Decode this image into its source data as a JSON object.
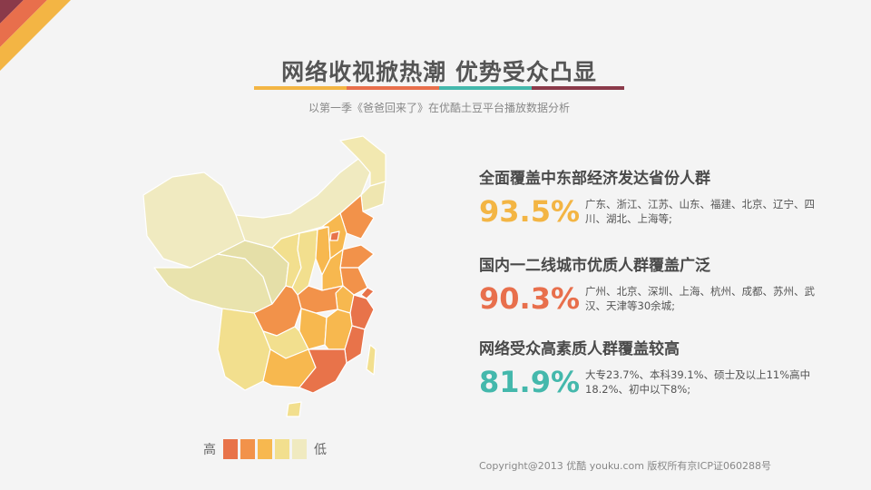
{
  "header": {
    "title": "网络收视掀热潮 优势受众凸显",
    "subtitle": "以第一季《爸爸回来了》在优酷土豆平台播放数据分析",
    "bar_colors": [
      "#f3b544",
      "#e86f4c",
      "#44b8ac",
      "#8b3a4a"
    ]
  },
  "corner_colors": [
    "#e86f4c",
    "#f3b544",
    "#8b3a4a"
  ],
  "map": {
    "icon": "china-map-icon",
    "levels": [
      "#e8734a",
      "#f2924a",
      "#f7b84f",
      "#f2df8e",
      "#f0eac0"
    ]
  },
  "legend": {
    "high": "高",
    "low": "低"
  },
  "stats": [
    {
      "heading": "全面覆盖中东部经济发达省份人群",
      "percent": "93.5%",
      "color": "#f3b544",
      "desc": "广东、浙江、江苏、山东、福建、北京、辽宁、四川、湖北、上海等;"
    },
    {
      "heading": "国内一二线城市优质人群覆盖广泛",
      "percent": "90.3%",
      "color": "#e86f4c",
      "desc": "广州、北京、深圳、上海、杭州、成都、苏州、武汉、天津等30余城;"
    },
    {
      "heading": "网络受众高素质人群覆盖较高",
      "percent": "81.9%",
      "color": "#44b8ac",
      "desc": "大专23.7%、本科39.1%、硕士及以上11%高中18.2%、初中以下8%;"
    }
  ],
  "footer": {
    "copyright": "Copyright@2013 优酷 youku.com 版权所有京ICP证060288号"
  }
}
